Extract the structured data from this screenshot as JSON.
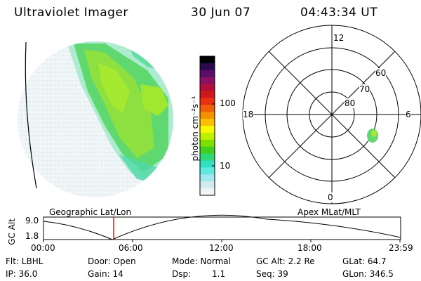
{
  "header": {
    "title": "Ultraviolet Imager",
    "date": "30 Jun 07",
    "time": "04:43:34 UT"
  },
  "colorbar": {
    "unit_label": "photon cm⁻²s⁻¹",
    "tick_labels": [
      "100",
      "10"
    ],
    "colors": [
      "#000000",
      "#2a0a4a",
      "#5a0c6a",
      "#8a1060",
      "#b0103a",
      "#d0181c",
      "#ea3010",
      "#f06008",
      "#f59000",
      "#f8c000",
      "#f8f800",
      "#c0f000",
      "#7ce000",
      "#40d020",
      "#30d878",
      "#30e0c0",
      "#60e8e0",
      "#a0e8ec",
      "#d0ecf0",
      "#f0f6f8"
    ]
  },
  "polar": {
    "mlt_labels": {
      "top": "12",
      "left": "18",
      "right": "6",
      "bottom": "0"
    },
    "lat_labels": [
      "60",
      "70",
      "80"
    ]
  },
  "timeline": {
    "left_label": "Geographic Lat/Lon",
    "right_label": "Apex MLat/MLT",
    "axis_title": "GC Alt",
    "y_ticks": [
      "9.0",
      "1.8"
    ],
    "x_ticks": [
      "00:00",
      "06:00",
      "12:00",
      "18:00",
      "23:59"
    ],
    "current_time_fraction": 0.197,
    "marker_color": "#ff0000"
  },
  "info": {
    "filter": "Flt: LBHL",
    "ip": "IP: 36.0",
    "door": "Door: Open",
    "gain": "Gain: 14",
    "mode": "Mode: Normal",
    "dsp_label": "Dsp:",
    "dsp_value": "1.1",
    "gc_alt": "GC Alt: 2.2 Re",
    "seq": "Seq: 39",
    "glat": "GLat:  64.7",
    "glon": "GLon: 346.5"
  }
}
